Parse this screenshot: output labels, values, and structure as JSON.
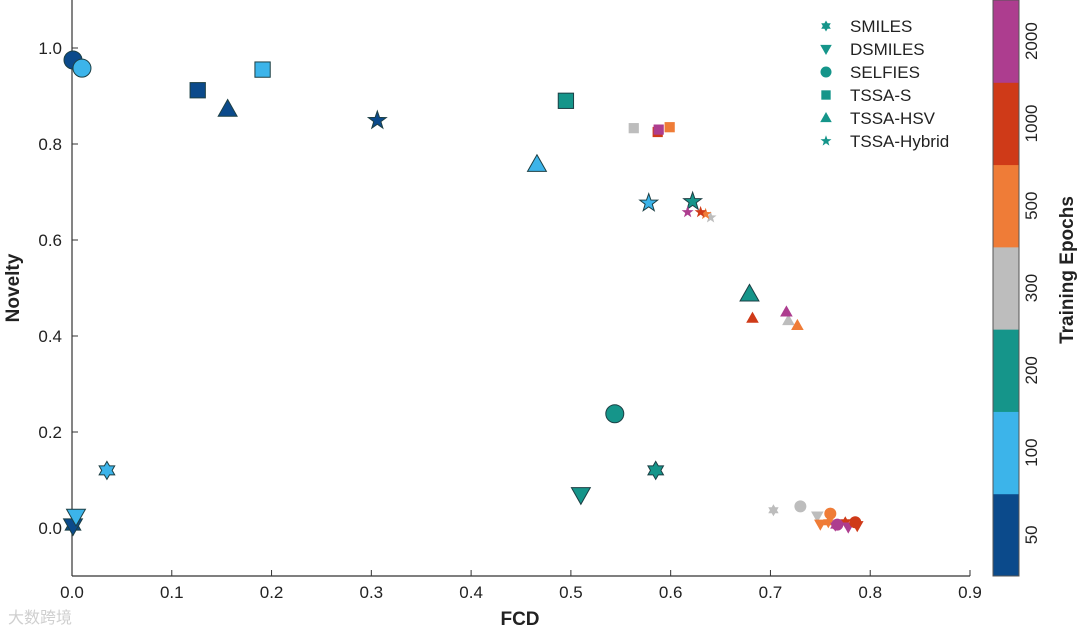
{
  "chart_data": {
    "type": "scatter",
    "title": "",
    "xlabel": "FCD",
    "ylabel": "Novelty",
    "xlim": [
      0,
      0.9
    ],
    "ylim": [
      -0.1,
      1.1
    ],
    "xticks": [
      0,
      0.1,
      0.2,
      0.3,
      0.4,
      0.5,
      0.6,
      0.7,
      0.8,
      0.9
    ],
    "xtick_labels": [
      "0.0",
      "0.1",
      "0.2",
      "0.3",
      "0.4",
      "0.5",
      "0.6",
      "0.7",
      "0.8",
      "0.9"
    ],
    "yticks": [
      0,
      0.2,
      0.4,
      0.6,
      0.8,
      1.0
    ],
    "ytick_labels": [
      "0.0",
      "0.2",
      "0.4",
      "0.6",
      "0.8",
      "1.0"
    ],
    "legend_position": "top-right",
    "colorbar": {
      "label": "Training Epochs",
      "levels": [
        {
          "label": "50",
          "color": "#0b4a8b"
        },
        {
          "label": "100",
          "color": "#3cb4ea"
        },
        {
          "label": "200",
          "color": "#15958a"
        },
        {
          "label": "300",
          "color": "#bdbdbd"
        },
        {
          "label": "500",
          "color": "#ef7c37"
        },
        {
          "label": "1000",
          "color": "#cf3a18"
        },
        {
          "label": "2000",
          "color": "#ad3d8f"
        }
      ]
    },
    "legend": [
      {
        "label": "SMILES",
        "marker": "hexagram"
      },
      {
        "label": "DSMILES",
        "marker": "triangle-down"
      },
      {
        "label": "SELFIES",
        "marker": "circle"
      },
      {
        "label": "TSSA-S",
        "marker": "square"
      },
      {
        "label": "TSSA-HSV",
        "marker": "triangle-up"
      },
      {
        "label": "TSSA-Hybrid",
        "marker": "star"
      }
    ],
    "legend_color": "#15958a",
    "series": [
      {
        "name": "SMILES",
        "marker": "hexagram",
        "points": [
          {
            "x": 0.001,
            "y": 0.005,
            "epochs": "50",
            "size": "large"
          },
          {
            "x": 0.035,
            "y": 0.12,
            "epochs": "100",
            "size": "large"
          },
          {
            "x": 0.585,
            "y": 0.12,
            "epochs": "200",
            "size": "large"
          },
          {
            "x": 0.703,
            "y": 0.037,
            "epochs": "300",
            "size": "small"
          },
          {
            "x": 0.758,
            "y": 0.012,
            "epochs": "500",
            "size": "small"
          },
          {
            "x": 0.775,
            "y": 0.012,
            "epochs": "1000",
            "size": "small"
          },
          {
            "x": 0.765,
            "y": 0.005,
            "epochs": "2000",
            "size": "small"
          }
        ]
      },
      {
        "name": "DSMILES",
        "marker": "triangle-down",
        "points": [
          {
            "x": 0.001,
            "y": 0.005,
            "epochs": "50",
            "size": "large"
          },
          {
            "x": 0.004,
            "y": 0.025,
            "epochs": "100",
            "size": "large"
          },
          {
            "x": 0.51,
            "y": 0.07,
            "epochs": "200",
            "size": "large"
          },
          {
            "x": 0.747,
            "y": 0.025,
            "epochs": "300",
            "size": "small"
          },
          {
            "x": 0.75,
            "y": 0.008,
            "epochs": "500",
            "size": "small"
          },
          {
            "x": 0.787,
            "y": 0.005,
            "epochs": "1000",
            "size": "small"
          },
          {
            "x": 0.778,
            "y": 0.002,
            "epochs": "2000",
            "size": "small"
          }
        ]
      },
      {
        "name": "SELFIES",
        "marker": "circle",
        "points": [
          {
            "x": 0.001,
            "y": 0.975,
            "epochs": "50",
            "size": "large"
          },
          {
            "x": 0.01,
            "y": 0.958,
            "epochs": "100",
            "size": "large"
          },
          {
            "x": 0.544,
            "y": 0.238,
            "epochs": "200",
            "size": "large"
          },
          {
            "x": 0.73,
            "y": 0.045,
            "epochs": "300",
            "size": "small"
          },
          {
            "x": 0.76,
            "y": 0.03,
            "epochs": "500",
            "size": "small"
          },
          {
            "x": 0.785,
            "y": 0.012,
            "epochs": "1000",
            "size": "small"
          },
          {
            "x": 0.767,
            "y": 0.007,
            "epochs": "2000",
            "size": "small"
          }
        ]
      },
      {
        "name": "TSSA-S",
        "marker": "square",
        "points": [
          {
            "x": 0.126,
            "y": 0.912,
            "epochs": "50",
            "size": "large"
          },
          {
            "x": 0.191,
            "y": 0.955,
            "epochs": "100",
            "size": "large"
          },
          {
            "x": 0.495,
            "y": 0.89,
            "epochs": "200",
            "size": "large"
          },
          {
            "x": 0.563,
            "y": 0.833,
            "epochs": "300",
            "size": "small"
          },
          {
            "x": 0.599,
            "y": 0.835,
            "epochs": "500",
            "size": "small"
          },
          {
            "x": 0.587,
            "y": 0.825,
            "epochs": "1000",
            "size": "small"
          },
          {
            "x": 0.588,
            "y": 0.83,
            "epochs": "2000",
            "size": "small"
          }
        ]
      },
      {
        "name": "TSSA-HSV",
        "marker": "triangle-up",
        "points": [
          {
            "x": 0.156,
            "y": 0.872,
            "epochs": "50",
            "size": "large"
          },
          {
            "x": 0.466,
            "y": 0.757,
            "epochs": "100",
            "size": "large"
          },
          {
            "x": 0.679,
            "y": 0.487,
            "epochs": "200",
            "size": "large"
          },
          {
            "x": 0.718,
            "y": 0.432,
            "epochs": "300",
            "size": "small"
          },
          {
            "x": 0.727,
            "y": 0.422,
            "epochs": "500",
            "size": "small"
          },
          {
            "x": 0.682,
            "y": 0.437,
            "epochs": "1000",
            "size": "small"
          },
          {
            "x": 0.716,
            "y": 0.45,
            "epochs": "2000",
            "size": "small"
          }
        ]
      },
      {
        "name": "TSSA-Hybrid",
        "marker": "star",
        "points": [
          {
            "x": 0.306,
            "y": 0.849,
            "epochs": "50",
            "size": "large"
          },
          {
            "x": 0.578,
            "y": 0.677,
            "epochs": "100",
            "size": "large"
          },
          {
            "x": 0.622,
            "y": 0.68,
            "epochs": "200",
            "size": "large"
          },
          {
            "x": 0.64,
            "y": 0.647,
            "epochs": "300",
            "size": "small"
          },
          {
            "x": 0.635,
            "y": 0.654,
            "epochs": "500",
            "size": "small"
          },
          {
            "x": 0.63,
            "y": 0.658,
            "epochs": "1000",
            "size": "small"
          },
          {
            "x": 0.617,
            "y": 0.658,
            "epochs": "2000",
            "size": "small"
          }
        ]
      }
    ]
  },
  "watermark": "大数跨境"
}
